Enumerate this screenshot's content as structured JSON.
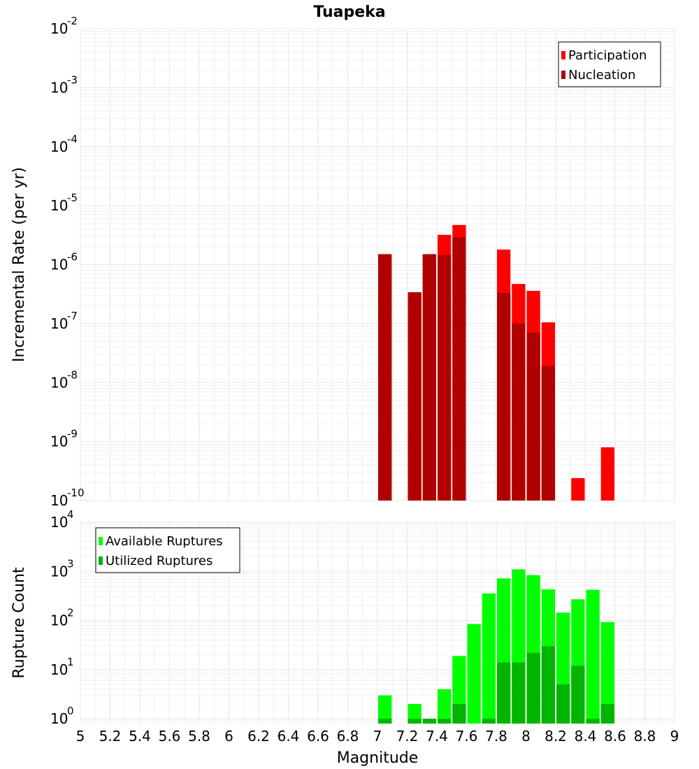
{
  "chart_data": [
    {
      "type": "bar",
      "title": "Tuapeka",
      "xlabel": "",
      "ylabel": "Incremental Rate (per yr)",
      "yscale": "log",
      "ylim": [
        1e-10,
        0.01
      ],
      "xlim": [
        5,
        9
      ],
      "y_tick_labels": [
        {
          "base": "10",
          "exp": "-10"
        },
        {
          "base": "10",
          "exp": "-9"
        },
        {
          "base": "10",
          "exp": "-8"
        },
        {
          "base": "10",
          "exp": "-7"
        },
        {
          "base": "10",
          "exp": "-6"
        },
        {
          "base": "10",
          "exp": "-5"
        },
        {
          "base": "10",
          "exp": "-4"
        },
        {
          "base": "10",
          "exp": "-3"
        },
        {
          "base": "10",
          "exp": "-2"
        }
      ],
      "legend": {
        "position": "top-right",
        "entries": [
          "Participation",
          "Nucleation"
        ]
      },
      "grid": true,
      "bar_width": 0.1,
      "series": [
        {
          "name": "Participation",
          "color": "#ff0000",
          "x": [
            7.05,
            7.25,
            7.35,
            7.45,
            7.55,
            7.85,
            7.95,
            8.05,
            8.15,
            8.35,
            8.55
          ],
          "values": [
            1.5e-06,
            3.4e-07,
            1.5e-06,
            3.2e-06,
            4.7e-06,
            1.8e-06,
            4.7e-07,
            3.6e-07,
            1.05e-07,
            2.4e-10,
            8e-10
          ]
        },
        {
          "name": "Nucleation",
          "color": "#b00000",
          "x": [
            7.05,
            7.25,
            7.35,
            7.45,
            7.55,
            7.85,
            7.95,
            8.05,
            8.15
          ],
          "values": [
            1.5e-06,
            3.4e-07,
            1.5e-06,
            1.45e-06,
            2.9e-06,
            3.3e-07,
            1e-07,
            7e-08,
            1.9e-08
          ]
        }
      ]
    },
    {
      "type": "bar",
      "title": "",
      "xlabel": "Magnitude",
      "ylabel": "Rupture Count",
      "yscale": "log",
      "ylim": [
        0.8,
        10000
      ],
      "xlim": [
        5,
        9
      ],
      "y_tick_labels": [
        {
          "value": 1,
          "base": "10",
          "exp": "0"
        },
        {
          "value": 10,
          "base": "10",
          "exp": "1"
        },
        {
          "value": 100,
          "base": "10",
          "exp": "2"
        },
        {
          "value": 1000,
          "base": "10",
          "exp": "3"
        },
        {
          "value": 10000,
          "base": "10",
          "exp": "4"
        }
      ],
      "x_tick_labels": [
        "5",
        "5.2",
        "5.4",
        "5.6",
        "5.8",
        "6",
        "6.2",
        "6.4",
        "6.6",
        "6.8",
        "7",
        "7.2",
        "7.4",
        "7.6",
        "7.8",
        "8",
        "8.2",
        "8.4",
        "8.6",
        "8.8",
        "9"
      ],
      "legend": {
        "position": "top-left",
        "entries": [
          "Available Ruptures",
          "Utilized Ruptures"
        ]
      },
      "grid": true,
      "bar_width": 0.1,
      "series": [
        {
          "name": "Available Ruptures",
          "color": "#00ff00",
          "x": [
            7.05,
            7.25,
            7.35,
            7.45,
            7.55,
            7.65,
            7.75,
            7.85,
            7.95,
            8.05,
            8.15,
            8.25,
            8.35,
            8.45,
            8.55
          ],
          "values": [
            3,
            2,
            1,
            4,
            19,
            85,
            355,
            720,
            1100,
            840,
            430,
            145,
            270,
            420,
            93
          ]
        },
        {
          "name": "Utilized Ruptures",
          "color": "#00b400",
          "x": [
            7.05,
            7.25,
            7.35,
            7.45,
            7.55,
            7.75,
            7.85,
            7.95,
            8.05,
            8.15,
            8.25,
            8.35,
            8.45,
            8.55
          ],
          "values": [
            1,
            1,
            1,
            1,
            2,
            1,
            14,
            14,
            22,
            30,
            5,
            12,
            1,
            2
          ]
        }
      ]
    }
  ]
}
